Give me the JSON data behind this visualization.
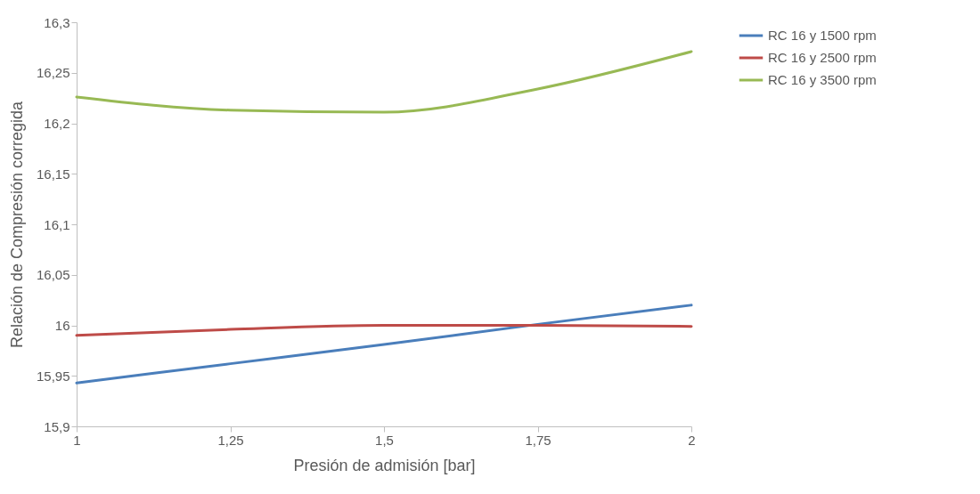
{
  "chart_data": {
    "type": "line",
    "xlabel": "Presión de admisión [bar]",
    "ylabel": "Relación de Compresión corregida",
    "x": [
      1,
      1.25,
      1.5,
      1.75,
      2
    ],
    "series": [
      {
        "name": "RC 16 y 1500 rpm",
        "color": "#4a7ebb",
        "values": [
          15.943,
          15.962,
          15.981,
          16.001,
          16.02
        ]
      },
      {
        "name": "RC 16 y 2500 rpm",
        "color": "#be4b48",
        "values": [
          15.99,
          15.996,
          16.0,
          16.0,
          15.999
        ]
      },
      {
        "name": "RC 16 y 3500 rpm",
        "color": "#98b954",
        "values": [
          16.226,
          16.213,
          16.211,
          16.234,
          16.271
        ]
      }
    ],
    "xlim": [
      1,
      2
    ],
    "xticks": [
      1,
      {
        "value": 1.25,
        "label": "1,25"
      },
      {
        "value": 1.5,
        "label": "1,5"
      },
      {
        "value": 1.75,
        "label": "1,75"
      },
      2
    ],
    "ylim": [
      15.9,
      16.3
    ],
    "yticks": [
      {
        "value": 15.9,
        "label": "15,9"
      },
      {
        "value": 15.95,
        "label": "15,95"
      },
      16,
      {
        "value": 16.05,
        "label": "16,05"
      },
      {
        "value": 16.1,
        "label": "16,1"
      },
      {
        "value": 16.15,
        "label": "16,15"
      },
      {
        "value": 16.2,
        "label": "16,2"
      },
      {
        "value": 16.25,
        "label": "16,25"
      },
      {
        "value": 16.3,
        "label": "16,3"
      }
    ],
    "grid": false,
    "legend": "right",
    "marker": "none",
    "line_style": "solid"
  }
}
